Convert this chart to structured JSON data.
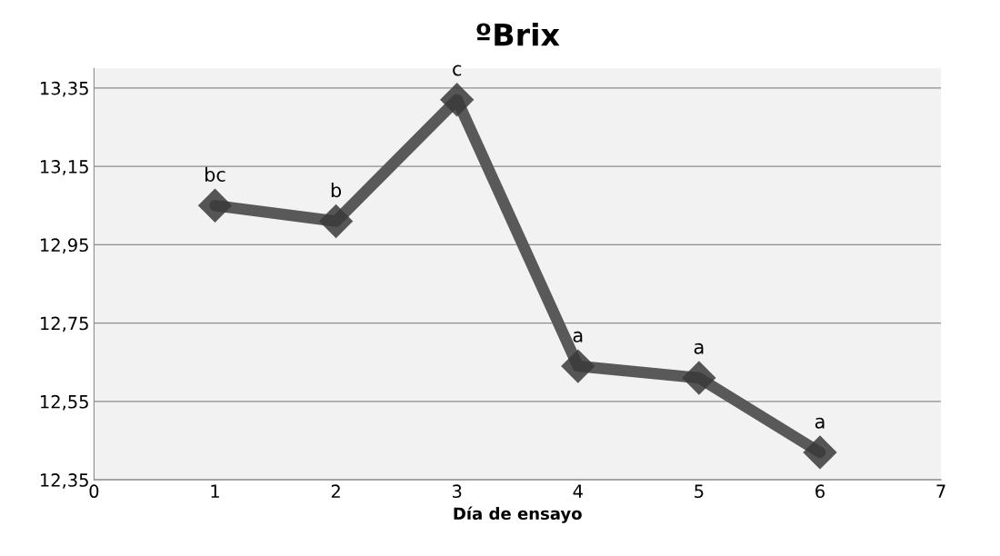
{
  "chart_data": {
    "type": "line",
    "title": "ºBrix",
    "xlabel": "Día de ensayo",
    "x": [
      1,
      2,
      3,
      4,
      5,
      6
    ],
    "series": [
      {
        "color": "#595959",
        "values": [
          13.05,
          13.01,
          13.32,
          12.64,
          12.61,
          12.42
        ]
      }
    ],
    "xlim": [
      0,
      7
    ],
    "xticks": [
      0,
      1,
      2,
      3,
      4,
      5,
      6,
      7
    ],
    "ylim": [
      12.35,
      13.4
    ],
    "yticks": [
      {
        "value": 12.35,
        "label": "12,35"
      },
      {
        "value": 12.55,
        "label": "12,55"
      },
      {
        "value": 12.75,
        "label": "12,75"
      },
      {
        "value": 12.95,
        "label": "12,95"
      },
      {
        "value": 13.15,
        "label": "13,15"
      },
      {
        "value": 13.35,
        "label": "13,35"
      }
    ],
    "grid": "y",
    "marker": "diamond",
    "line_style": "solid",
    "legend": false,
    "annotations": [
      {
        "text": "bc",
        "x": 1,
        "y": 13.05
      },
      {
        "text": "b",
        "x": 2,
        "y": 13.01
      },
      {
        "text": "c",
        "x": 3,
        "y": 13.32
      },
      {
        "text": "a",
        "x": 4,
        "y": 12.64
      },
      {
        "text": "a",
        "x": 5,
        "y": 12.61
      },
      {
        "text": "a",
        "x": 6,
        "y": 12.42
      }
    ]
  }
}
